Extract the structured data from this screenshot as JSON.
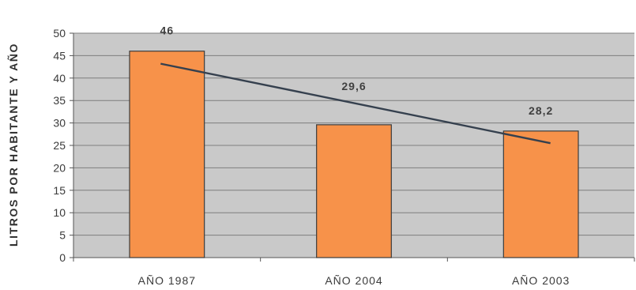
{
  "chart_data": {
    "type": "bar",
    "title": "",
    "xlabel": "",
    "ylabel": "LITROS POR HABITANTE Y AÑO",
    "categories": [
      "AÑO 1987",
      "AÑO 2004",
      "AÑO 2003"
    ],
    "values": [
      46,
      29.6,
      28.2
    ],
    "data_labels": [
      "46",
      "29,6",
      "28,2"
    ],
    "ylim": [
      0,
      50
    ],
    "yticks": [
      0,
      5,
      10,
      15,
      20,
      25,
      30,
      35,
      40,
      45,
      50
    ],
    "trendline": {
      "start": 43.2,
      "end": 25.5
    },
    "grid": true,
    "legend": "none",
    "colors": {
      "bar": "#f7924a",
      "bar_border": "#3c3c3c",
      "plot_bg": "#c9c9c9",
      "grid": "#7e7e7e",
      "trendline": "#35404e"
    }
  }
}
